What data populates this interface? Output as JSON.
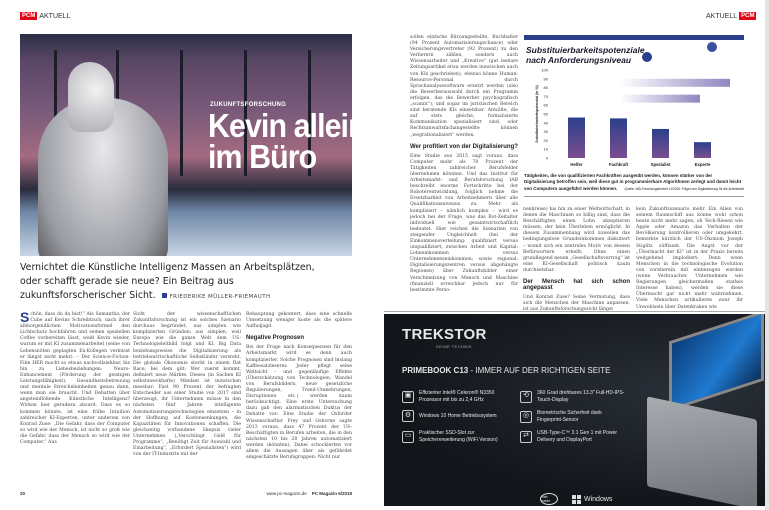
{
  "left_page": {
    "section_tag": {
      "brand": "PCM",
      "label": "AKTUELL"
    },
    "kicker": "ZUKUNFTSFORSCHUNG",
    "title": "Kevin allein im Büro",
    "deck": "Vernichtet die Künstliche Intelligenz Massen an Arbeitsplätzen, oder schafft gerade sie neue? Ein Beitrag aus zukunftsforscherischer Sicht.",
    "author": "FRIEDERIKE MÜLLER-FRIEMAUTH",
    "drop_cap": "S",
    "col1": "chön, dass du da bist!“ Als Samantha, der Cube auf Kevins Schreibtisch, nach ihrer allmorgendlichen Motivationsformel den Lichtschutz hochfahren und seinen speziellen Coffee vorbereiten lässt, weiß Kevin wieder, warum er mit KI zusammenarbeitet (seine von Lebensnöten geplagten Ex-Kollegen vermisst er längst nicht mehr). – Der Science-Fiction-Film HER macht so etwas nachvollziehbar, bis hin zu Liebesbeziehungen: Neuro-Enhancement (Förderung der geistigen Leistungsfähigkeit), Gesundheitsbetreuung und mentale Streicheleinheiten genau dann, wenn man sie braucht. Und Debatten über angsteinflößende Künstliche Intelligenz? Wirken hier geradezu absurd. Dass es so kommen könnte, ist eine frühe Intuition zahlreicher KI-Experten, unter anderem von Konrad Zuse: „Die Gefahr, dass der Computer so wird wie der Mensch, ist nicht so groß wie die Gefahr, dass der Mensch so wird wie der Computer.“ Aus",
    "col2": "Sicht der wissenschaftlichen Zukunftsforschung ist ein solches Szenario durchaus begründet, aus simplen wie komplizierten Gründen: aus simplen, weil Europa wie die ganze Welt dem US-Technologieleitbild folgt und KI, Big Data beziehungsweise die Digitalisierung als betriebswirtschaftliche Selbstläufer versteht. Die globale Ökonomie steckt in einem Rat Race, bei dem gilt: Wer zuerst kommt, definiert neue Märkte. Dieses (in Sachen KI selbstzweckhafte) Mindset ist inzwischen messbar: Fast 90 Prozent der befragten Entscheider aus einer Studie von 2017 sind überzeugt, ihr Unternehmen müsse in den nächsten fünf Jahren intelligente Automatisierungstechnologien einsetzen – in der Hoffnung auf Kostensenkungen, die Kapazitäten für Innovationen schaffen. Die gleichzeitig vorhandene Skepsis vieler Unternehmen („Verschlingt Geld für Programme“, „Benötigt Zeit für Auswahl und Einarbeitung“, „Erfordert Spezialisten“) wird von der IT-Industrie mit der",
    "col3a": "Behauptung gekontert, dass eine schnelle Umsetzung weniger koste als die spätere Aufholjagd.",
    "col3_heading": "Negative Prognosen",
    "col3b": "Bei der Frage nach Konsequenzen für den Arbeitsmarkt wird es denn auch komplizierter. Solche Prognosen sind bislang Kaffeesatzleserei: Jeder pflegt seine Weltsicht – und gegenläufige Effekte (Überschätzung von Technologien, Wandel von Berufsbildern, neue gesetzliche Regulierungen, Trend-Umkehrungen, Disruptionen etc.) werden kaum berücksichtigt. Eine erste Untersuchung dazu gab den alarmistischen Duktus der Debatte vor: Eine Studie der Oxforder Wissenschaftler Frey und Osborne sagte 2013 voraus, dass 47 Prozent der US-Beschäftigten in Berufen arbeiten, die in den nächsten 10 bis 20 Jahren automatisiert werden (könnten). Dabei schockierten vor allem die Aussagen über als gefährdet eingeschätzte Berufsgruppen: Nicht nur",
    "page_number": "20",
    "footer": "www.pc-magazin.de",
    "issue": "PC Magazin 6/2018"
  },
  "right_page": {
    "section_tag": {
      "label": "AKTUELL",
      "brand": "PCM"
    },
    "col1a": "sollen einfache Büroangestellte, Buchhalter (94 Prozent Automatisierungschance) oder Versicherungsvertreter (92 Prozent) zu den Verlierern zählen, sondern auch Wissensarbeiter und „Kreative“ (gut lesbare Zeitungsartikel etwa werden inzwischen auch von KIs geschrieben); ebenso könne Human-Resource-Personal durch Sprachanalysesoftware ersetzt werden (also die Bewerberauswahl durch ein Programm erfolgen, das die Bewerber psychografisch „scannt“), und sogar im juristischen Bereich sind beratende KIs einsetzbar. Anwälte, die auf stets gleiche, formalisierte Kommunikation spezialisiert sind, oder Rechtsanwaltsfachangestellte können „wegrationalisiert“ werden.",
    "col1_heading": "Wer profitiert von der Digitalisierung?",
    "col1b": "Eine Studie aus 2015 sagt voraus, dass Computer mehr als 70 Prozent der Tätigkeiten zahlreicher Berufsfelder übernehmen könnten. Und das Institut für Arbeitsmarkt- und Berufsforschung IAB beschreibt enorme Fortschritte bei der Roboterentwicklung, folglich nehme die Ersetzbarkeit von Arbeitnehmern über alle Qualifikationsniveaus zu. Mehr als kompliziert – nämlich komplex – wird es jedoch bei der Frage, was das Bot-Zeitalter individuell wie gesamtwirtschaftlich bedeutet. Hier reichen die Szenarien von steigender Ungleichheit (bei der Einkommensverteilung: qualifiziert versus unqualifiziert; zwischen Arbeit und Kapital: Lohneinkommen versus Unternehmenseinkommen; sowie regional: Digitalisierungszentren versus abgehängte Regionen) über Zukunftsbilder einer Verschmelzung von Mensch und Maschine (finanziell erreichbar jedoch nur für bestimmte Perso-",
    "col2a": "nenkreise) bis hin zu einer Weltwirtschaft, in denen die Maschinen so billig sind, dass die Beschäftigten einen Lohn akzeptieren müssen, der kein Überleben ermöglicht. In diesem Zusammenhang wird zuweilen das bedingungslose Grundeinkommen diskutiert – womit sich ein zentrales Motiv von dessen Befürwortern erhellt: Ohne einen grundlegend neuen „Gesellschaftsvertrag“ ist eine KI-Gesellschaft politisch kaum durchsetzbar.",
    "col2_heading": "Der Mensch hat sich schon angepasst",
    "col2b": "Und Konrad Zuse? Seine Vermutung, dass sich die Menschen der Maschine anpassen, ist aus Zukunftsforschungssicht längst",
    "col3": "kein Zukunftsszenario mehr. Ein Alien von seinem Raumschiff aus könne wohl schon heute nicht mehr sagen, ob Tech-Riesen wie Apple oder Amazon das Verhalten der Bevölkerung kontrollieren oder umgekehrt, bemerkte kürzlich der US-Ökonom Joseph Stiglitz süffisant. Die Angst vor der „Übermacht der KI“ ist in der Praxis bereits weitgehend implodiert: Denn wenn Menschen in die technologische Evolution von vornherein mit einbezogen werden (wenn Verbraucher, Unternehmen wie Regierungen gleichermaßen starkes Interesse haben), werden sie diese Übermacht gar nicht mehr wahrnehmen. Viele Menschen artikulieren zwar ihr Unwohlsein über Datenkraken wie",
    "caption": "Tätigkeiten, die von qualifizierten Fachkräften ausgeübt werden, können stärker von der Digitalisierung betroffen sein, weil diese gut in programmierbare Algorithmen zerlegt und damit leicht von Computern ausgeführt werden können.",
    "caption_source": "Quelle: IAB-Forschungsbericht 11/2015: Folgen der Digitalisierung für die Arbeitswelt"
  },
  "chart_data": {
    "type": "bar",
    "title": "Substituierbarkeitspotenziale nach Anforderungsniveau",
    "ylabel": "Substituierbarkeitspotenzial (in %)",
    "categories": [
      "Helfer",
      "Fachkraft",
      "Spezialist",
      "Experte"
    ],
    "values": [
      46,
      45,
      33,
      18
    ],
    "ylim": [
      0,
      100
    ],
    "yticks": [
      0,
      10,
      20,
      30,
      40,
      50,
      60,
      70,
      80,
      90,
      100
    ],
    "grid": false,
    "colors": {
      "bar_top": "#2b3f8c",
      "bar_bottom": "#7a4f8f",
      "banner": "#2b3f8c"
    }
  },
  "ad": {
    "brand": "TREKSTOR",
    "slogan": "DEINE TECHNIK",
    "headline_bold": "PRIMEBOOK C13",
    "headline_rest": "- IMMER AUF DER RICHTIGEN SEITE",
    "features": [
      {
        "icon": "cpu-icon",
        "text": "Effizienter Intel® Celeron® N3350 Prozessor mit bis zu 2,4 GHz"
      },
      {
        "icon": "rotate-icon",
        "text": "360 Grad drehbares 13.3\" Full-HD-IPS-Touch-Display"
      },
      {
        "icon": "windows-settings-icon",
        "text": "Windows 10 Home Betriebssystem"
      },
      {
        "icon": "fingerprint-icon",
        "text": "Biometrische Sicherheit dank Fingerprint-Sensor"
      },
      {
        "icon": "ssd-icon",
        "text": "Praktischer SSD-Slot zur Speichererweiterung (WiFi Version)"
      },
      {
        "icon": "usb-c-icon",
        "text": "USB-Type-C™ 3.1 Gen 1 mit Power Delivery und DisplayPort"
      }
    ],
    "intel_badge": "intel inside",
    "windows_label": "Windows"
  }
}
